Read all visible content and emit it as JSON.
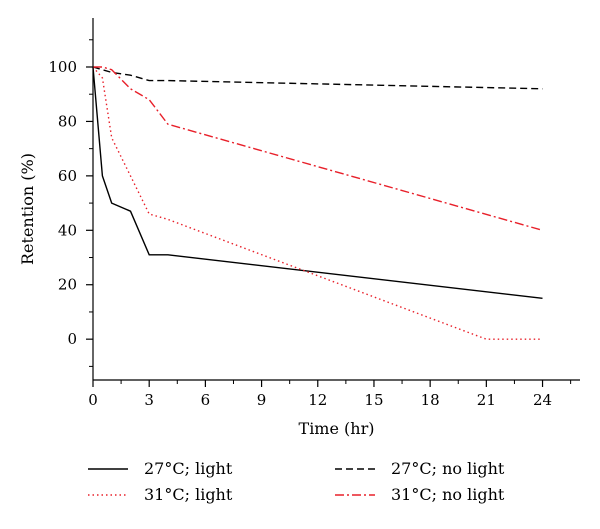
{
  "chart_data": {
    "type": "line",
    "xlabel": "Time (hr)",
    "ylabel": "Retention (%)",
    "xlim": [
      0,
      26
    ],
    "ylim": [
      -15,
      118
    ],
    "xticks": [
      0,
      3,
      6,
      9,
      12,
      15,
      18,
      21,
      24
    ],
    "yticks": [
      0,
      20,
      40,
      60,
      80,
      100
    ],
    "grid": false,
    "legend_position": "bottom",
    "series": [
      {
        "name": "27°C; light",
        "color": "#000000",
        "dash": "solid",
        "x": [
          0,
          0.5,
          1,
          2,
          3,
          4,
          24
        ],
        "y": [
          100,
          60,
          50,
          47,
          31,
          31,
          15
        ]
      },
      {
        "name": "27°C; no light",
        "color": "#000000",
        "dash": "dashed",
        "x": [
          0,
          0.5,
          1,
          2,
          3,
          4,
          24
        ],
        "y": [
          100,
          99,
          98,
          97,
          95,
          95,
          92
        ]
      },
      {
        "name": "31°C; light",
        "color": "#e8202a",
        "dash": "dotted",
        "x": [
          0,
          0.5,
          1,
          2,
          3,
          4,
          21,
          24
        ],
        "y": [
          100,
          96,
          74,
          60,
          46,
          44,
          0,
          0
        ]
      },
      {
        "name": "31°C; no light",
        "color": "#e8202a",
        "dash": "dashdot",
        "x": [
          0,
          0.5,
          1,
          2,
          3,
          4,
          24
        ],
        "y": [
          100,
          100,
          99,
          92,
          88,
          79,
          40
        ]
      }
    ]
  }
}
